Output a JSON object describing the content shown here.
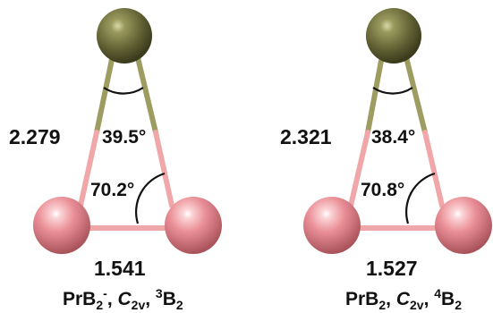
{
  "colors": {
    "pr_atom": "#6b6b3a",
    "b_atom": "#e0828a",
    "pr_bond": "#9d9d62",
    "b_bond": "#f0a7aa",
    "arc": "#111111",
    "text": "#111111"
  },
  "molecules": [
    {
      "bond_prb": "2.279",
      "bond_bb": "1.541",
      "angle_pr": "39.5°",
      "angle_b": "70.2°",
      "caption": {
        "formula_main": "PrB",
        "formula_sub": "2",
        "formula_sup": "-",
        "sym_letter": "C",
        "sym_sub": "2v",
        "state_sup": "3",
        "state_letter": "B",
        "state_sub": "2"
      }
    },
    {
      "bond_prb": "2.321",
      "bond_bb": "1.527",
      "angle_pr": "38.4°",
      "angle_b": "70.8°",
      "caption": {
        "formula_main": "PrB",
        "formula_sub": "2",
        "formula_sup": "",
        "sym_letter": "C",
        "sym_sub": "2v",
        "state_sup": "4",
        "state_letter": "B",
        "state_sub": "2"
      }
    }
  ]
}
